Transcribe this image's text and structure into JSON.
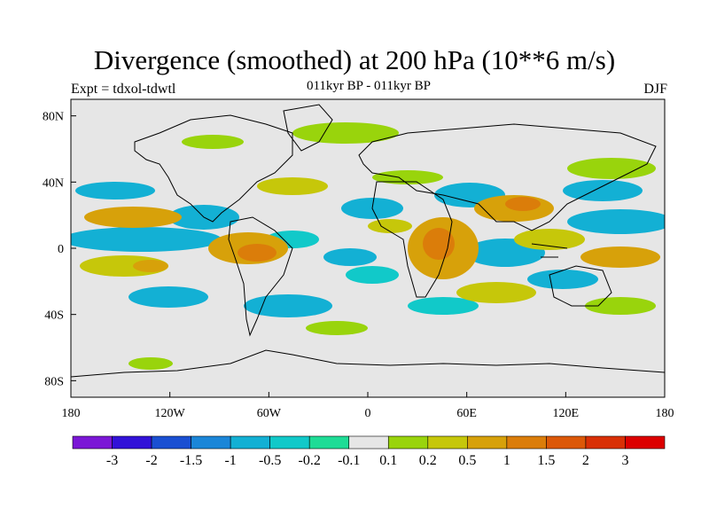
{
  "title": "Divergence (smoothed) at 200 hPa (10**6 m/s)",
  "subtitle_left": "Expt = tdxol-tdwtl",
  "subtitle_center": "011kyr BP - 011kyr BP",
  "subtitle_right": "DJF",
  "map": {
    "background_color": "#e6e6e6",
    "lat_ticks": [
      "80N",
      "40N",
      "0",
      "40S",
      "80S"
    ],
    "lat_values": [
      80,
      40,
      0,
      -40,
      -80
    ],
    "lon_ticks": [
      "180",
      "120W",
      "60W",
      "0",
      "60E",
      "120E",
      "180"
    ],
    "lon_values": [
      -180,
      -120,
      -60,
      0,
      60,
      120,
      180
    ]
  },
  "colorbar": {
    "colors": [
      "#7b17d6",
      "#3212d8",
      "#1a4fd2",
      "#1b86d8",
      "#13b0d4",
      "#11c9c9",
      "#1edc96",
      "#e6e6e6",
      "#99d40c",
      "#c6c70a",
      "#d7a10a",
      "#db7d0a",
      "#dc5808",
      "#d93006",
      "#dc0000"
    ],
    "labels": [
      "-3",
      "-2",
      "-1.5",
      "-1",
      "-0.5",
      "-0.2",
      "-0.1",
      "0.1",
      "0.2",
      "0.5",
      "1",
      "1.5",
      "2",
      "3"
    ]
  }
}
